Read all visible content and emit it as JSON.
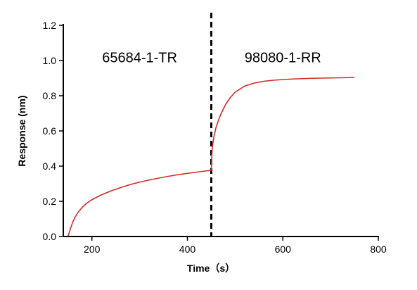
{
  "chart_data": {
    "type": "line",
    "title": "",
    "xlabel": "Time（s）",
    "ylabel": "Response (nm)",
    "xlim": [
      140,
      800
    ],
    "ylim": [
      0,
      1.2
    ],
    "x_ticks": [
      200,
      400,
      600,
      800
    ],
    "y_ticks": [
      0.0,
      0.2,
      0.4,
      0.6,
      0.8,
      1.0,
      1.2
    ],
    "x_tick_labels": [
      "200",
      "400",
      "600",
      "800"
    ],
    "y_tick_labels": [
      "0.0",
      "0.2",
      "0.4",
      "0.6",
      "0.8",
      "1.0",
      "1.2"
    ],
    "grid": false,
    "line_color": "#d42a2a",
    "divider": {
      "x": 450,
      "style": "dashed",
      "color": "#000000"
    },
    "annotations": [
      {
        "text": "65684-1-TR",
        "x": 300,
        "y": 0.99
      },
      {
        "text": "98080-1-RR",
        "x": 600,
        "y": 0.99
      }
    ],
    "series": [
      {
        "x": [
          150,
          155,
          160,
          165,
          170,
          180,
          190,
          200,
          220,
          240,
          260,
          280,
          300,
          320,
          340,
          360,
          380,
          400,
          420,
          440,
          450,
          451,
          452,
          455,
          460,
          465,
          470,
          480,
          490,
          500,
          520,
          540,
          560,
          580,
          600,
          620,
          640,
          660,
          680,
          700,
          720,
          740,
          750
        ],
        "y": [
          0.0,
          0.045,
          0.083,
          0.111,
          0.134,
          0.167,
          0.191,
          0.209,
          0.237,
          0.259,
          0.278,
          0.295,
          0.309,
          0.321,
          0.332,
          0.342,
          0.351,
          0.359,
          0.366,
          0.373,
          0.376,
          0.45,
          0.5,
          0.56,
          0.62,
          0.66,
          0.695,
          0.75,
          0.79,
          0.82,
          0.855,
          0.872,
          0.882,
          0.888,
          0.892,
          0.895,
          0.897,
          0.899,
          0.9,
          0.901,
          0.902,
          0.903,
          0.904
        ]
      }
    ]
  }
}
